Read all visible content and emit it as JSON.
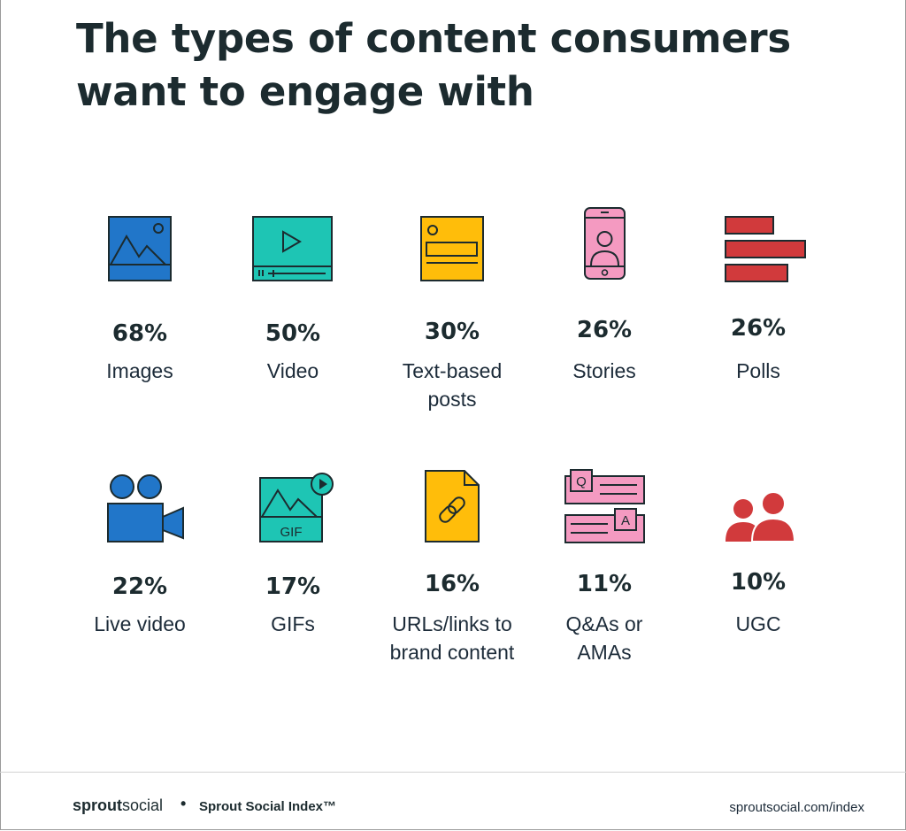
{
  "title": "The types of content consumers want to engage with",
  "chart_data": {
    "type": "table",
    "title": "The types of content consumers want to engage with",
    "categories": [
      "Images",
      "Video",
      "Text-based posts",
      "Stories",
      "Polls",
      "Live video",
      "GIFs",
      "URLs/links to brand content",
      "Q&As or AMAs",
      "UGC"
    ],
    "values": [
      68,
      50,
      30,
      26,
      26,
      22,
      17,
      16,
      11,
      10
    ],
    "value_labels": [
      "68%",
      "50%",
      "30%",
      "26%",
      "26%",
      "22%",
      "17%",
      "16%",
      "11%",
      "10%"
    ],
    "label_lines": [
      [
        "Images"
      ],
      [
        "Video"
      ],
      [
        "Text-based",
        "posts"
      ],
      [
        "Stories"
      ],
      [
        "Polls"
      ],
      [
        "Live video"
      ],
      [
        "GIFs"
      ],
      [
        "URLs/links to",
        "brand content"
      ],
      [
        "Q&As or",
        "AMAs"
      ],
      [
        "UGC"
      ]
    ],
    "icons": [
      "image-icon",
      "video-icon",
      "text-post-icon",
      "phone-story-icon",
      "poll-icon",
      "video-camera-icon",
      "gif-icon",
      "link-document-icon",
      "qa-icon",
      "people-icon"
    ],
    "gif_icon_text": "GIF",
    "qa_icon_q": "Q",
    "qa_icon_a": "A",
    "colors": {
      "blue": "#2176c9",
      "teal": "#1ec5b4",
      "yellow": "#ffbd0a",
      "pink": "#f49ac1",
      "red": "#d13a3c",
      "outline": "#1c2b2f"
    }
  },
  "footer": {
    "brand_bold": "sprout",
    "brand_thin": "social",
    "separator": "•",
    "index_label": "Sprout Social Index™",
    "url": "sproutsocial.com/index"
  }
}
